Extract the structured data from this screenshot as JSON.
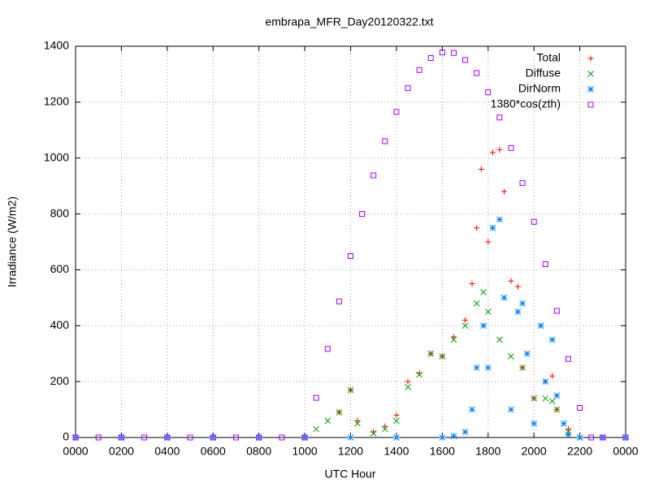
{
  "chart_data": {
    "type": "scatter",
    "title": "embrapa_MFR_Day20120322.txt",
    "xlabel": "UTC Hour",
    "ylabel": "Irradiance (W/m2)",
    "xlim": [
      0,
      24
    ],
    "ylim": [
      0,
      1400
    ],
    "xticks": [
      {
        "value": 0,
        "label": "0000"
      },
      {
        "value": 2,
        "label": "0200"
      },
      {
        "value": 4,
        "label": "0400"
      },
      {
        "value": 6,
        "label": "0600"
      },
      {
        "value": 8,
        "label": "0800"
      },
      {
        "value": 10,
        "label": "1000"
      },
      {
        "value": 12,
        "label": "1200"
      },
      {
        "value": 14,
        "label": "1400"
      },
      {
        "value": 16,
        "label": "1600"
      },
      {
        "value": 18,
        "label": "1800"
      },
      {
        "value": 20,
        "label": "2000"
      },
      {
        "value": 22,
        "label": "2200"
      },
      {
        "value": 24,
        "label": "0000"
      }
    ],
    "yticks": [
      0,
      200,
      400,
      600,
      800,
      1000,
      1200,
      1400
    ],
    "grid": true,
    "legend": "top right",
    "series": [
      {
        "name": "Total",
        "color": "#ff0000",
        "marker": "plus",
        "x": [
          11.5,
          12,
          12.3,
          13,
          13.5,
          14,
          14.5,
          15,
          15.5,
          16,
          16.5,
          17,
          17.3,
          17.5,
          17.7,
          18,
          18.2,
          18.5,
          18.7,
          19,
          19.3,
          19.5,
          20,
          20.5,
          20.8,
          21,
          21.5,
          22
        ],
        "values": [
          90,
          170,
          60,
          20,
          40,
          80,
          200,
          230,
          300,
          290,
          360,
          420,
          550,
          750,
          960,
          700,
          1020,
          1030,
          880,
          560,
          540,
          250,
          140,
          200,
          220,
          100,
          30,
          0
        ]
      },
      {
        "name": "Diffuse",
        "color": "#00a000",
        "marker": "cross",
        "x": [
          10,
          10.5,
          11,
          11.5,
          12,
          12.3,
          13,
          13.5,
          14,
          14.5,
          15,
          15.5,
          16,
          16.5,
          17,
          17.5,
          17.8,
          18,
          18.5,
          19,
          19.5,
          20,
          20.5,
          20.8,
          21,
          21.5,
          22
        ],
        "values": [
          0,
          30,
          60,
          90,
          170,
          50,
          15,
          30,
          60,
          180,
          225,
          300,
          290,
          350,
          400,
          480,
          520,
          450,
          350,
          290,
          250,
          140,
          140,
          130,
          100,
          20,
          0
        ]
      },
      {
        "name": "DirNorm",
        "color": "#0080ff",
        "marker": "star",
        "x": [
          0,
          2,
          4,
          6,
          8,
          10,
          12,
          14,
          16,
          16.5,
          17,
          17.3,
          17.5,
          17.8,
          18,
          18.2,
          18.5,
          18.7,
          19,
          19.3,
          19.5,
          19.7,
          20,
          20.3,
          20.5,
          20.8,
          21,
          21.3,
          21.5,
          22,
          23,
          24
        ],
        "values": [
          0,
          0,
          0,
          0,
          0,
          0,
          0,
          0,
          0,
          5,
          20,
          100,
          250,
          400,
          250,
          750,
          780,
          500,
          100,
          450,
          480,
          300,
          50,
          400,
          200,
          350,
          150,
          50,
          10,
          0,
          0,
          0
        ]
      },
      {
        "name": "1380*cos(zth)",
        "color": "#a000ff",
        "marker": "square",
        "x": [
          0,
          1,
          2,
          3,
          4,
          5,
          6,
          7,
          8,
          9,
          10,
          10.5,
          11,
          11.5,
          12,
          12.5,
          13,
          13.5,
          14,
          14.5,
          15,
          15.5,
          16,
          16.5,
          17,
          17.5,
          18,
          18.5,
          19,
          19.5,
          20,
          20.5,
          21,
          21.5,
          22,
          22.5,
          23,
          24
        ],
        "values": [
          0,
          0,
          0,
          0,
          0,
          0,
          0,
          0,
          0,
          0,
          0,
          142,
          317,
          487,
          649,
          800,
          938,
          1060,
          1165,
          1250,
          1315,
          1358,
          1378,
          1376,
          1351,
          1304,
          1235,
          1145,
          1036,
          911,
          772,
          620,
          453,
          281,
          106,
          0,
          0,
          0
        ]
      }
    ]
  }
}
